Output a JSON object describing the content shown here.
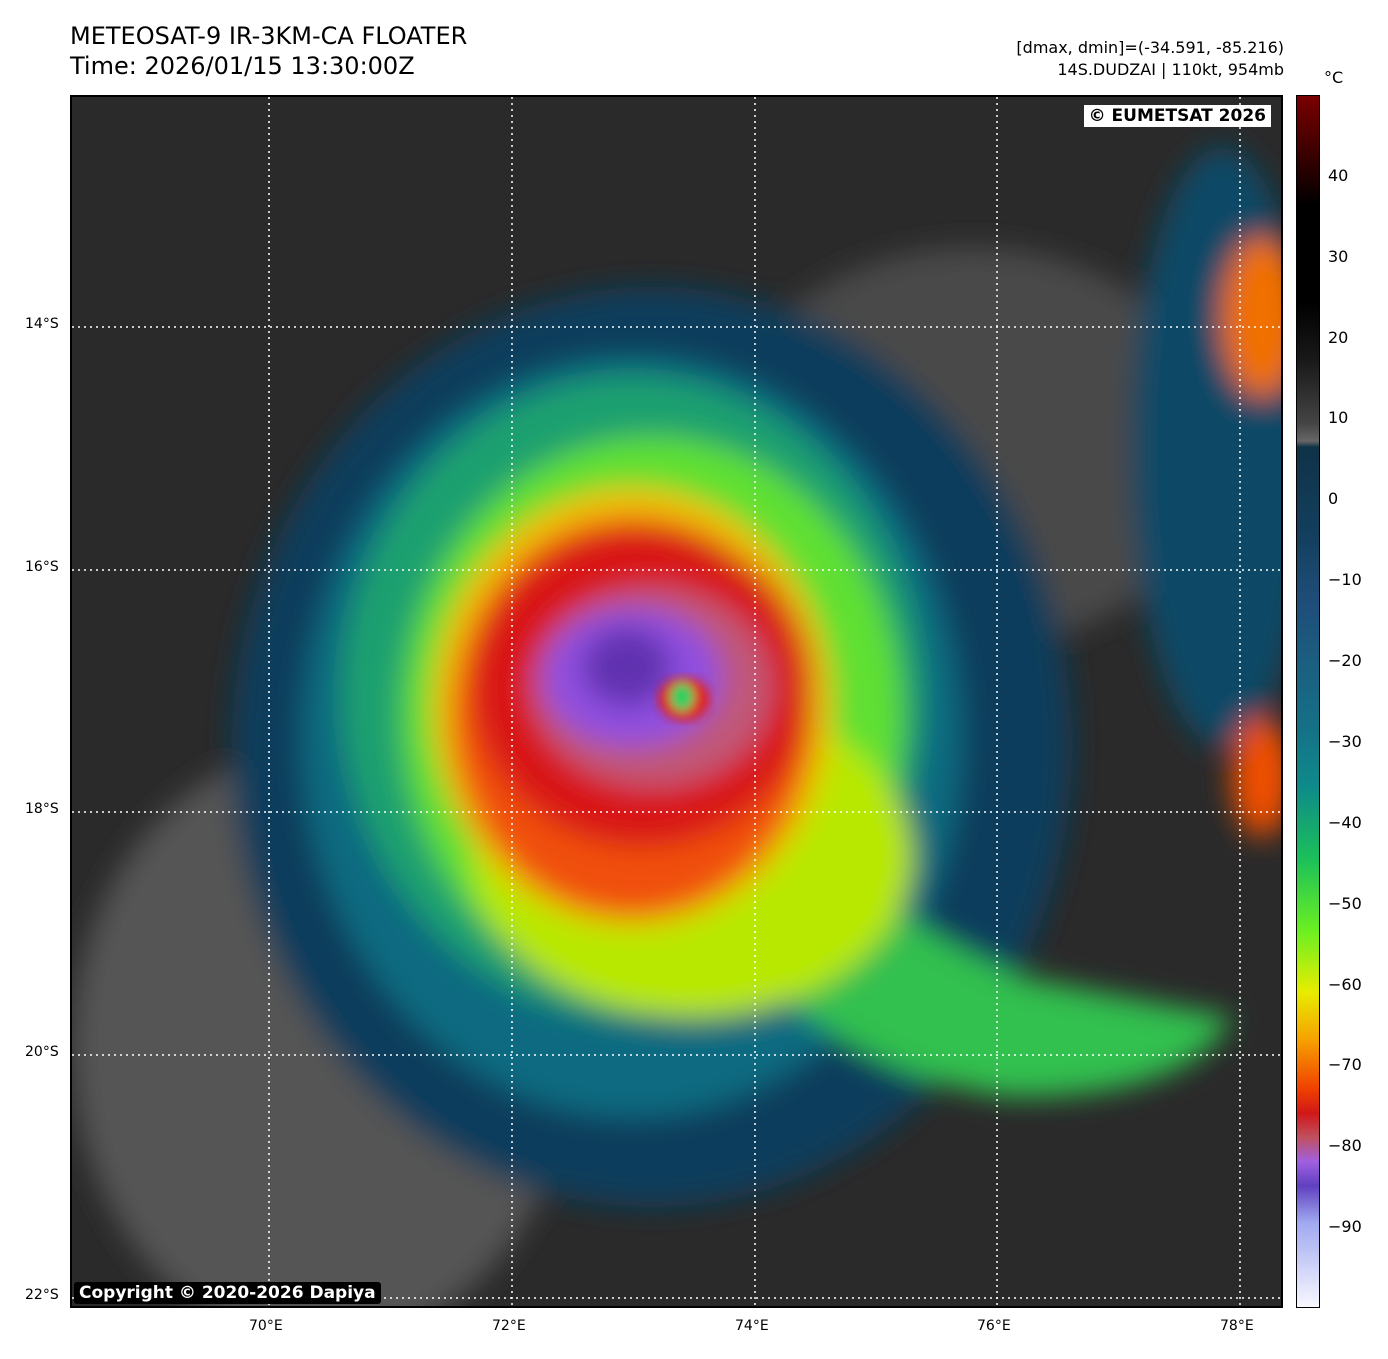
{
  "header": {
    "title_line1": "METEOSAT-9 IR-3KM-CA FLOATER",
    "title_line2": "Time: 2026/01/15 13:30:00Z",
    "range_text": "[dmax, dmin]=(-34.591, -85.216)",
    "storm_text": "14S.DUDZAI | 110kt, 954mb"
  },
  "map": {
    "credit": "© EUMETSAT 2026",
    "copyright": "Copyright © 2020-2026 Dapiya",
    "lon_ticks": [
      "70°E",
      "72°E",
      "74°E",
      "76°E",
      "78°E"
    ],
    "lat_ticks": [
      "14°S",
      "16°S",
      "18°S",
      "20°S",
      "22°S"
    ]
  },
  "colorbar": {
    "unit": "°C",
    "range": [
      -100,
      50
    ],
    "ticks": [
      "40",
      "30",
      "20",
      "10",
      "0",
      "−10",
      "−20",
      "−30",
      "−40",
      "−50",
      "−60",
      "−70",
      "−80",
      "−90"
    ]
  }
}
